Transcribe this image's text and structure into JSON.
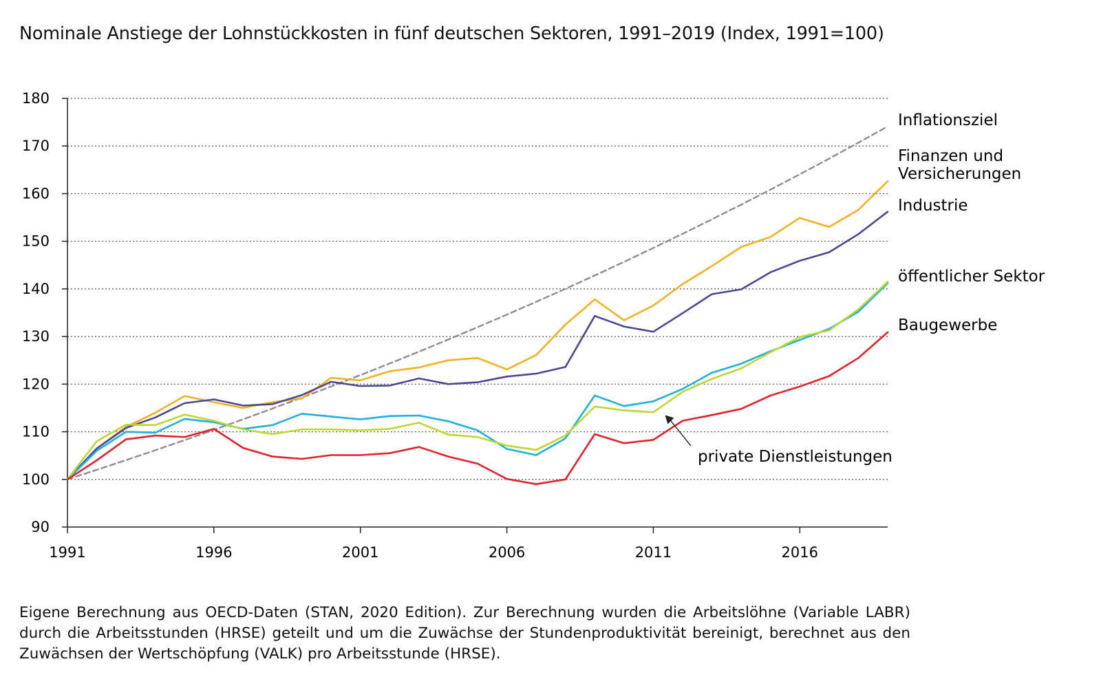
{
  "title": "Nominale Anstiege der Lohnstückkosten in fünf deutschen Sektoren, 1991–2019 (Index, 1991=100)",
  "note": "Eigene Berechnung aus OECD-Daten (STAN, 2020 Edition). Zur Berechnung wurden die Arbeitslöhne (Variable LABR) durch die Arbeitsstunden (HRSE) geteilt und um die Zuwächse der Stundenproduktivität bereinigt, berechnet aus den Zuwächsen der Wertschöpfung (VALK) pro Arbeitsstunde (HRSE).",
  "chart_data": {
    "type": "line",
    "title": "Nominale Anstiege der Lohnstückkosten in fünf deutschen Sektoren, 1991–2019 (Index, 1991=100)",
    "x": [
      1991,
      1992,
      1993,
      1994,
      1995,
      1996,
      1997,
      1998,
      1999,
      2000,
      2001,
      2002,
      2003,
      2004,
      2005,
      2006,
      2007,
      2008,
      2009,
      2010,
      2011,
      2012,
      2013,
      2014,
      2015,
      2016,
      2017,
      2018,
      2019
    ],
    "xlim": [
      1991,
      2019
    ],
    "ylim": [
      90,
      180
    ],
    "xticks": [
      1991,
      1996,
      2001,
      2006,
      2011,
      2016
    ],
    "yticks": [
      90,
      100,
      110,
      120,
      130,
      140,
      150,
      160,
      170,
      180
    ],
    "grid": "horizontal dotted",
    "series": [
      {
        "name": "Inflationsziel",
        "color": "#8c8c8c",
        "dashed": true,
        "values": [
          100,
          102,
          104.04,
          106.12,
          108.24,
          110.41,
          112.62,
          114.87,
          117.17,
          119.51,
          121.9,
          124.34,
          126.82,
          129.36,
          131.95,
          134.59,
          137.28,
          140.02,
          142.82,
          145.68,
          148.59,
          151.57,
          154.6,
          157.69,
          160.84,
          164.06,
          167.34,
          170.69,
          174.1
        ]
      },
      {
        "name": "Finanzen und Versicherungen",
        "color": "#f5b01f",
        "values": [
          100,
          106.5,
          111,
          114,
          117.5,
          116.2,
          115,
          116.2,
          117,
          121.3,
          120.8,
          122.7,
          123.5,
          125,
          125.5,
          123.1,
          126.1,
          132.5,
          137.8,
          133.4,
          136.5,
          141,
          144.8,
          148.8,
          150.9,
          154.9,
          153,
          156.6,
          162.6
        ]
      },
      {
        "name": "Industrie",
        "color": "#4d4595",
        "values": [
          100,
          106.5,
          110.8,
          113,
          116,
          116.8,
          115.5,
          115.8,
          117.7,
          120.5,
          119.6,
          119.7,
          121.2,
          120,
          120.4,
          121.6,
          122.2,
          123.6,
          134.3,
          132.1,
          131,
          134.9,
          138.9,
          139.9,
          143.5,
          145.9,
          147.7,
          151.5,
          156.2
        ]
      },
      {
        "name": "öffentlicher Sektor",
        "color": "#1fb0df",
        "values": [
          100,
          106,
          110,
          109.8,
          112.7,
          112,
          110.6,
          111.4,
          113.8,
          113.2,
          112.6,
          113.3,
          113.4,
          112.2,
          110.3,
          106.4,
          105.1,
          108.6,
          117.6,
          115.4,
          116.4,
          119,
          122.4,
          124.3,
          126.9,
          129.3,
          131.6,
          135.2,
          141.2
        ]
      },
      {
        "name": "private Dienstleistungen",
        "color": "#bed632",
        "values": [
          100,
          108,
          111.5,
          111.4,
          113.6,
          112.3,
          110.5,
          109.5,
          110.5,
          110.5,
          110.3,
          110.6,
          111.9,
          109.4,
          108.9,
          107.1,
          106.2,
          109.2,
          115.3,
          114.5,
          114.1,
          118.4,
          121.1,
          123.3,
          126.7,
          129.9,
          131.3,
          135.7,
          141.5
        ]
      },
      {
        "name": "Baugewerbe",
        "color": "#e4202b",
        "values": [
          100,
          104,
          108.4,
          109.2,
          108.9,
          110.6,
          106.6,
          104.8,
          104.3,
          105.1,
          105.1,
          105.5,
          106.8,
          104.8,
          103.3,
          100.1,
          99,
          100,
          109.5,
          107.6,
          108.3,
          112.3,
          113.5,
          114.8,
          117.6,
          119.5,
          121.7,
          125.5,
          130.9
        ]
      }
    ]
  }
}
